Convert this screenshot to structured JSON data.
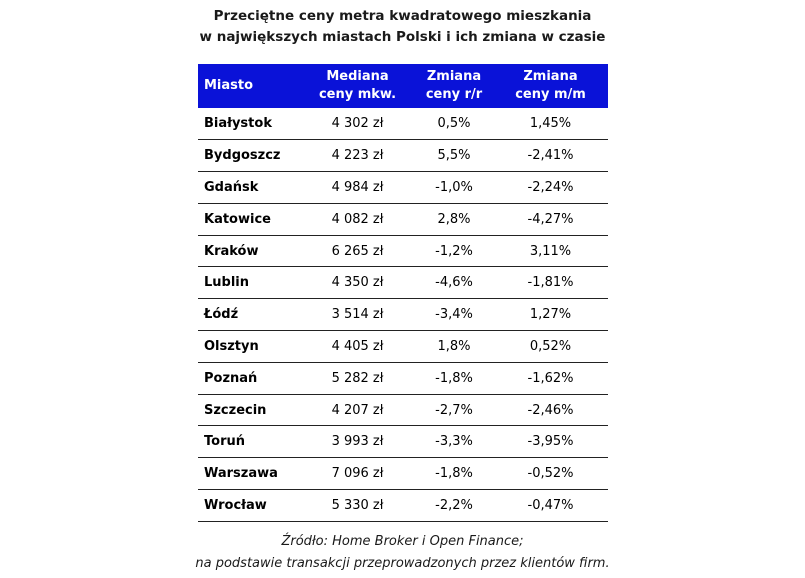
{
  "title": {
    "line1": "Przeciętne ceny metra kwadratowego mieszkania",
    "line2": "w największych miastach Polski i ich zmiana w czasie"
  },
  "columns": {
    "city": "Miasto",
    "median_line1": "Mediana",
    "median_line2": "ceny mkw.",
    "yoy_line1": "Zmiana",
    "yoy_line2": "ceny r/r",
    "mom_line1": "Zmiana",
    "mom_line2": "ceny m/m"
  },
  "source": {
    "line1": "Źródło: Home Broker i Open Finance;",
    "line2": "na podstawie transakcji przeprowadzonych przez klientów firm."
  },
  "chart_data": {
    "type": "table",
    "title": "Przeciętne ceny metra kwadratowego mieszkania w największych miastach Polski i ich zmiana w czasie",
    "headers": [
      "Miasto",
      "Mediana ceny mkw.",
      "Zmiana ceny r/r",
      "Zmiana ceny m/m"
    ],
    "rows": [
      {
        "city": "Białystok",
        "median": "4 302 zł",
        "yoy": "0,5%",
        "mom": "1,45%"
      },
      {
        "city": "Bydgoszcz",
        "median": "4 223 zł",
        "yoy": "5,5%",
        "mom": "-2,41%"
      },
      {
        "city": "Gdańsk",
        "median": "4 984 zł",
        "yoy": "-1,0%",
        "mom": "-2,24%"
      },
      {
        "city": "Katowice",
        "median": "4 082 zł",
        "yoy": "2,8%",
        "mom": "-4,27%"
      },
      {
        "city": "Kraków",
        "median": "6 265 zł",
        "yoy": "-1,2%",
        "mom": "3,11%"
      },
      {
        "city": "Lublin",
        "median": "4 350 zł",
        "yoy": "-4,6%",
        "mom": "-1,81%"
      },
      {
        "city": "Łódź",
        "median": "3 514 zł",
        "yoy": "-3,4%",
        "mom": "1,27%"
      },
      {
        "city": "Olsztyn",
        "median": "4 405 zł",
        "yoy": "1,8%",
        "mom": "0,52%"
      },
      {
        "city": "Poznań",
        "median": "5 282 zł",
        "yoy": "-1,8%",
        "mom": "-1,62%"
      },
      {
        "city": "Szczecin",
        "median": "4 207 zł",
        "yoy": "-2,7%",
        "mom": "-2,46%"
      },
      {
        "city": "Toruń",
        "median": "3 993 zł",
        "yoy": "-3,3%",
        "mom": "-3,95%"
      },
      {
        "city": "Warszawa",
        "median": "7 096 zł",
        "yoy": "-1,8%",
        "mom": "-0,52%"
      },
      {
        "city": "Wrocław",
        "median": "5 330 zł",
        "yoy": "-2,2%",
        "mom": "-0,47%"
      }
    ]
  }
}
